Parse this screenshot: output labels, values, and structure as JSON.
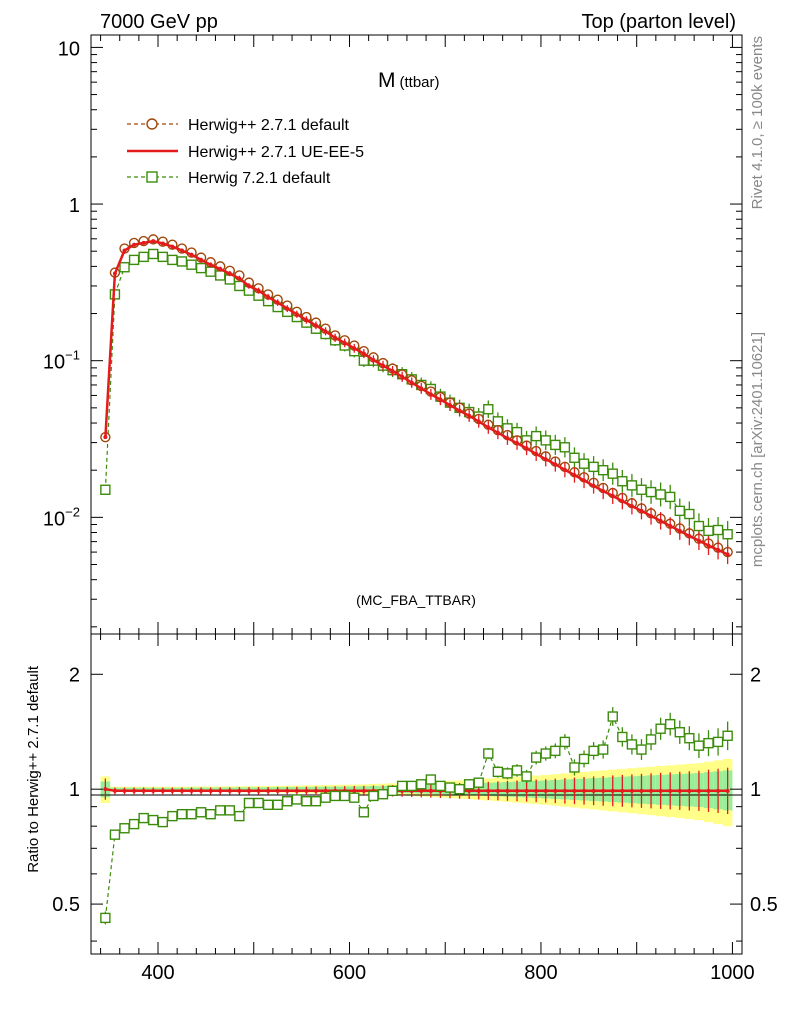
{
  "header": {
    "left": "7000 GeV pp",
    "right": "Top (parton level)"
  },
  "observable": {
    "main": "M",
    "sub": "(ttbar)"
  },
  "side_labels": {
    "rivet": "Rivet 4.1.0, ≥ 100k events",
    "mcplots": "mcplots.cern.ch [arXiv:2401.10621]"
  },
  "analysis_id": "(MC_FBA_TTBAR)",
  "ratio_ylabel": "Ratio to Herwig++ 2.7.1 default",
  "colors": {
    "herwig271_default": "#a0470b",
    "herwig271_ueee5": "#e41a1c",
    "herwig721_default": "#3c8c0c",
    "band_yellow": "#ffff88",
    "band_green": "#99ee99"
  },
  "chart_data": [
    {
      "type": "line",
      "panel": "main",
      "xlim": [
        330,
        1010
      ],
      "ylim": [
        0.0018,
        12
      ],
      "yscale": "log",
      "yticks": [
        {
          "value": 10,
          "label": "10"
        },
        {
          "value": 1,
          "label": "1"
        },
        {
          "value": 0.1,
          "label": "10",
          "exp": "−1"
        },
        {
          "value": 0.01,
          "label": "10",
          "exp": "−2"
        }
      ],
      "x": [
        345,
        355,
        365,
        375,
        385,
        395,
        405,
        415,
        425,
        435,
        445,
        455,
        465,
        475,
        485,
        495,
        505,
        515,
        525,
        535,
        545,
        555,
        565,
        575,
        585,
        595,
        605,
        615,
        625,
        635,
        645,
        655,
        665,
        675,
        685,
        695,
        705,
        715,
        725,
        735,
        745,
        755,
        765,
        775,
        785,
        795,
        805,
        815,
        825,
        835,
        845,
        855,
        865,
        875,
        885,
        895,
        905,
        915,
        925,
        935,
        945,
        955,
        965,
        975,
        985,
        995
      ],
      "series": [
        {
          "name": "Herwig++ 2.7.1 default",
          "style": "dashed-circle",
          "values": [
            0.0325,
            0.365,
            0.52,
            0.565,
            0.58,
            0.595,
            0.575,
            0.55,
            0.52,
            0.49,
            0.455,
            0.425,
            0.4,
            0.375,
            0.35,
            0.315,
            0.29,
            0.265,
            0.245,
            0.225,
            0.205,
            0.19,
            0.175,
            0.16,
            0.145,
            0.135,
            0.125,
            0.115,
            0.105,
            0.0965,
            0.089,
            0.0815,
            0.075,
            0.069,
            0.0635,
            0.0585,
            0.054,
            0.05,
            0.046,
            0.0425,
            0.039,
            0.036,
            0.0335,
            0.031,
            0.0287,
            0.0265,
            0.0245,
            0.0227,
            0.021,
            0.0194,
            0.018,
            0.0166,
            0.0154,
            0.0143,
            0.0133,
            0.0123,
            0.0114,
            0.0106,
            0.0098,
            0.0091,
            0.0085,
            0.0079,
            0.0073,
            0.0068,
            0.0064,
            0.006
          ]
        },
        {
          "name": "Herwig++ 2.7.1 UE-EE-5",
          "style": "solid",
          "values": [
            0.0325,
            0.36,
            0.505,
            0.55,
            0.565,
            0.58,
            0.56,
            0.535,
            0.505,
            0.475,
            0.44,
            0.41,
            0.385,
            0.36,
            0.335,
            0.3,
            0.28,
            0.255,
            0.235,
            0.215,
            0.198,
            0.182,
            0.168,
            0.154,
            0.14,
            0.13,
            0.12,
            0.111,
            0.101,
            0.093,
            0.086,
            0.079,
            0.0725,
            0.0665,
            0.061,
            0.0565,
            0.052,
            0.048,
            0.0445,
            0.041,
            0.0375,
            0.0347,
            0.032,
            0.0298,
            0.0276,
            0.0254,
            0.0235,
            0.0218,
            0.0201,
            0.0186,
            0.0172,
            0.0159,
            0.0147,
            0.0137,
            0.0127,
            0.0118,
            0.011,
            0.0102,
            0.0095,
            0.0088,
            0.0082,
            0.0076,
            0.0071,
            0.0066,
            0.0062,
            0.0058
          ]
        },
        {
          "name": "Herwig 7.2.1 default",
          "style": "dashed-square",
          "values": [
            0.015,
            0.265,
            0.395,
            0.44,
            0.46,
            0.48,
            0.46,
            0.44,
            0.43,
            0.41,
            0.39,
            0.37,
            0.35,
            0.33,
            0.3,
            0.28,
            0.26,
            0.24,
            0.22,
            0.205,
            0.19,
            0.175,
            0.16,
            0.148,
            0.135,
            0.125,
            0.115,
            0.1,
            0.1,
            0.093,
            0.087,
            0.082,
            0.076,
            0.07,
            0.066,
            0.059,
            0.054,
            0.05,
            0.047,
            0.044,
            0.049,
            0.041,
            0.037,
            0.035,
            0.031,
            0.033,
            0.031,
            0.029,
            0.028,
            0.024,
            0.022,
            0.021,
            0.02,
            0.019,
            0.017,
            0.016,
            0.015,
            0.0145,
            0.014,
            0.0135,
            0.011,
            0.0105,
            0.0088,
            0.0082,
            0.0083,
            0.0078
          ]
        }
      ]
    },
    {
      "type": "line",
      "panel": "ratio",
      "title": "Ratio to Herwig++ 2.7.1 default",
      "xlim": [
        330,
        1010
      ],
      "ylim": [
        0.37,
        2.55
      ],
      "yscale": "log",
      "xticks": [
        400,
        600,
        800,
        1000
      ],
      "yticks": [
        {
          "value": 2,
          "label": "2"
        },
        {
          "value": 1,
          "label": "1"
        },
        {
          "value": 0.5,
          "label": "0.5"
        }
      ],
      "reference_band_half_width": [
        0.08,
        0.015,
        0.015,
        0.015,
        0.015,
        0.015,
        0.015,
        0.015,
        0.015,
        0.016,
        0.016,
        0.016,
        0.017,
        0.017,
        0.018,
        0.018,
        0.019,
        0.019,
        0.02,
        0.021,
        0.022,
        0.023,
        0.024,
        0.025,
        0.026,
        0.027,
        0.028,
        0.03,
        0.032,
        0.034,
        0.036,
        0.038,
        0.04,
        0.043,
        0.046,
        0.049,
        0.052,
        0.055,
        0.058,
        0.062,
        0.066,
        0.07,
        0.074,
        0.078,
        0.082,
        0.086,
        0.09,
        0.095,
        0.1,
        0.105,
        0.11,
        0.115,
        0.12,
        0.125,
        0.13,
        0.135,
        0.14,
        0.145,
        0.15,
        0.155,
        0.16,
        0.165,
        0.17,
        0.18,
        0.19,
        0.2
      ],
      "series": [
        {
          "name": "Herwig++ 2.7.1 UE-EE-5",
          "style": "solid",
          "values": [
            1.0,
            0.99,
            0.99,
            0.99,
            0.99,
            0.99,
            0.99,
            0.99,
            0.99,
            0.99,
            0.99,
            0.99,
            0.99,
            0.99,
            0.99,
            0.99,
            0.99,
            0.99,
            0.99,
            0.99,
            0.99,
            0.99,
            0.99,
            0.99,
            0.99,
            0.99,
            0.99,
            0.99,
            0.99,
            0.99,
            0.99,
            0.99,
            0.99,
            0.99,
            0.99,
            0.99,
            0.99,
            0.99,
            0.99,
            0.99,
            0.99,
            0.99,
            0.99,
            0.99,
            0.99,
            0.99,
            0.99,
            0.99,
            0.99,
            0.99,
            0.99,
            0.99,
            0.99,
            0.99,
            0.99,
            0.99,
            0.99,
            0.99,
            0.99,
            0.99,
            0.99,
            0.99,
            0.99,
            0.99,
            0.99,
            0.99
          ]
        },
        {
          "name": "Herwig 7.2.1 default",
          "style": "dashed-square",
          "values": [
            0.46,
            0.76,
            0.79,
            0.81,
            0.84,
            0.83,
            0.82,
            0.85,
            0.86,
            0.86,
            0.87,
            0.86,
            0.88,
            0.88,
            0.85,
            0.92,
            0.92,
            0.91,
            0.91,
            0.93,
            0.94,
            0.93,
            0.93,
            0.95,
            0.96,
            0.96,
            0.95,
            0.87,
            0.96,
            0.97,
            0.99,
            1.02,
            1.02,
            1.03,
            1.06,
            1.02,
            1.01,
            1.0,
            1.03,
            1.04,
            1.24,
            1.11,
            1.1,
            1.12,
            1.08,
            1.21,
            1.24,
            1.26,
            1.33,
            1.14,
            1.2,
            1.26,
            1.27,
            1.55,
            1.37,
            1.31,
            1.27,
            1.35,
            1.44,
            1.48,
            1.41,
            1.36,
            1.3,
            1.32,
            1.33,
            1.38
          ]
        }
      ]
    }
  ]
}
